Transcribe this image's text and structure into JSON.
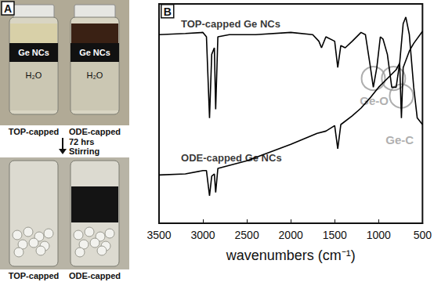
{
  "photo_panel": {
    "label": "A",
    "band_text": "Ge NCs",
    "water_text": "H₂O",
    "vials": [
      "TOP-capped",
      "ODE-capped"
    ],
    "step": [
      "72 hrs",
      "Stirring"
    ]
  },
  "chart_data": {
    "type": "line",
    "panel_label": "B",
    "x_label": "wavenumbers (cm⁻¹)",
    "xlim": [
      500,
      3500
    ],
    "xticks": [
      500,
      1000,
      1500,
      2000,
      2500,
      3000,
      3500
    ],
    "ylim": [
      0,
      100
    ],
    "tick_labels": "x",
    "grid": false,
    "log": false,
    "series": [
      {
        "name": "TOP-capped Ge NCs",
        "color": "#000000",
        "label_at": [
          3250,
          91
        ],
        "x": [
          3500,
          3200,
          3000,
          2960,
          2925,
          2900,
          2870,
          2855,
          2830,
          2700,
          2400,
          2000,
          1750,
          1680,
          1650,
          1600,
          1500,
          1465,
          1430,
          1380,
          1300,
          1200,
          1150,
          1100,
          1060,
          1020,
          980,
          950,
          900,
          850,
          800,
          760,
          720,
          690,
          650,
          600,
          560,
          500
        ],
        "values": [
          86,
          86.5,
          87,
          85,
          48,
          77,
          80,
          52,
          85,
          86,
          86,
          87,
          86,
          83,
          80,
          85,
          83,
          71,
          81,
          80,
          83,
          87,
          86,
          73,
          62,
          71,
          85,
          84,
          77,
          62,
          62,
          73,
          91,
          94,
          86,
          62,
          48,
          45
        ]
      },
      {
        "name": "ODE-capped Ge NCs",
        "color": "#000000",
        "label_at": [
          3250,
          30
        ],
        "x": [
          3500,
          3200,
          3000,
          2960,
          2925,
          2900,
          2870,
          2855,
          2830,
          2500,
          2000,
          1700,
          1600,
          1500,
          1465,
          1430,
          1300,
          1200,
          1100,
          1000,
          900,
          800,
          760,
          740,
          720,
          650,
          600,
          500
        ],
        "values": [
          22,
          22.5,
          24,
          24,
          12.5,
          21.5,
          22.5,
          14,
          25,
          28.5,
          36,
          41,
          42,
          44.5,
          34,
          45,
          49,
          52.5,
          57,
          62,
          66,
          70,
          73,
          48,
          71,
          78.5,
          82,
          87.5
        ]
      }
    ],
    "annotations": [
      {
        "text": "Ge-O",
        "x": 1050,
        "y": 56,
        "circles": [
          [
            1060,
            66
          ],
          [
            830,
            66
          ]
        ]
      },
      {
        "text": "Ge-C",
        "x": 760,
        "y": 38,
        "circles": [
          [
            740,
            58
          ]
        ]
      }
    ]
  }
}
